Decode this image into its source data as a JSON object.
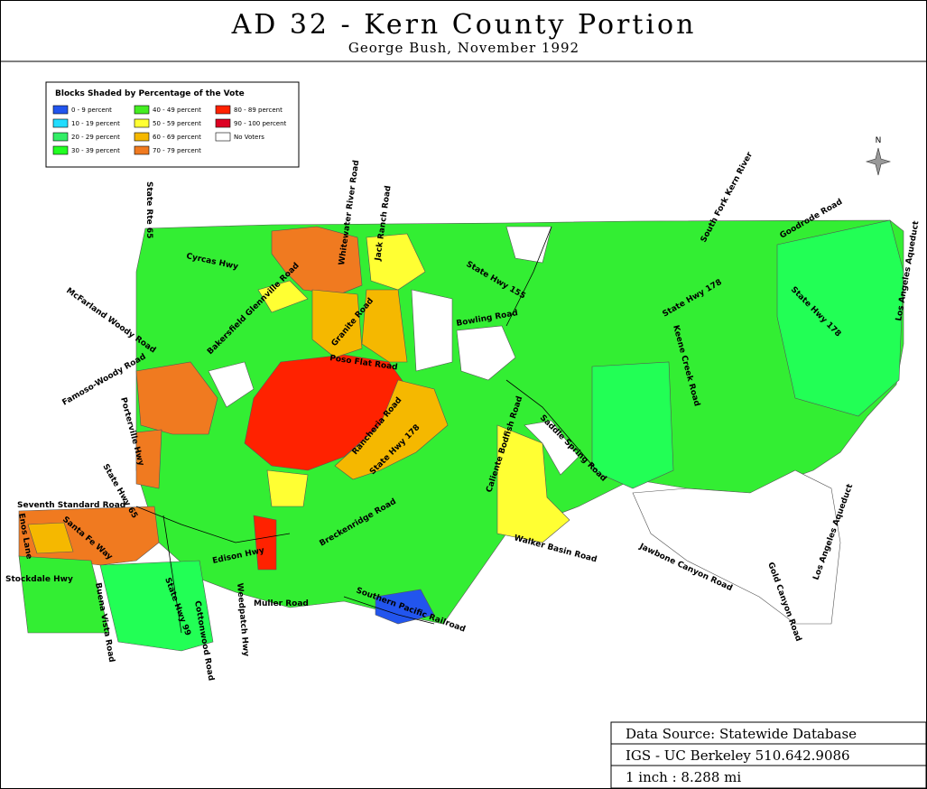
{
  "header": {
    "title": "AD 32 - Kern County Portion",
    "subtitle": "George Bush, November 1992"
  },
  "legend": {
    "title": "Blocks Shaded by Percentage of the Vote",
    "items": [
      {
        "label": "0 - 9 percent",
        "color": "#2255ee"
      },
      {
        "label": "10 - 19 percent",
        "color": "#22ddff"
      },
      {
        "label": "20 - 29 percent",
        "color": "#33ee66"
      },
      {
        "label": "30 - 39 percent",
        "color": "#22ff22"
      },
      {
        "label": "40 - 49 percent",
        "color": "#44ee22"
      },
      {
        "label": "50 - 59 percent",
        "color": "#ffff33"
      },
      {
        "label": "60 - 69 percent",
        "color": "#f5b800"
      },
      {
        "label": "70 - 79 percent",
        "color": "#f07a20"
      },
      {
        "label": "80 - 89 percent",
        "color": "#ff2200"
      },
      {
        "label": "90 - 100 percent",
        "color": "#dd0022"
      },
      {
        "label": "No Voters",
        "color": "#ffffff"
      }
    ]
  },
  "compass": "N",
  "roads": [
    "State Rte 65",
    "Cyrcas Hwy",
    "McFarland Woody Road",
    "Famoso-Woody Road",
    "Porterville Hwy",
    "State Hwy 65",
    "Seventh Standard Road",
    "Enos Lane",
    "Santa Fe Way",
    "Stockdale Hwy",
    "Buena Vista Road",
    "Cottonwood Road",
    "State Hwy 99",
    "Edison Hwy",
    "Weedpatch Hwy",
    "Muller Road",
    "Bakersfield Glennville Road",
    "Whitewater River Road",
    "Jack Ranch Road",
    "Granite Road",
    "Poso Flat Road",
    "Rancheria Road",
    "State Hwy 178",
    "State Hwy 155",
    "Bowling Road",
    "Caliente Bodfish Road",
    "Keene Creek Road",
    "Saddle Spring Road",
    "State Hwy 178",
    "State Hwy 178",
    "South Fork Kern River",
    "Goodrode Road",
    "Los Angeles Aqueduct",
    "Los Angeles Aqueduct",
    "Breckenridge Road",
    "Walker Basin Road",
    "Jawbone Canyon Road",
    "Gold Canyon Road",
    "Southern Pacific Railroad"
  ],
  "info": [
    "Data Source: Statewide Database",
    "IGS - UC Berkeley 510.642.9086",
    "1 inch : 8.288 mi"
  ]
}
